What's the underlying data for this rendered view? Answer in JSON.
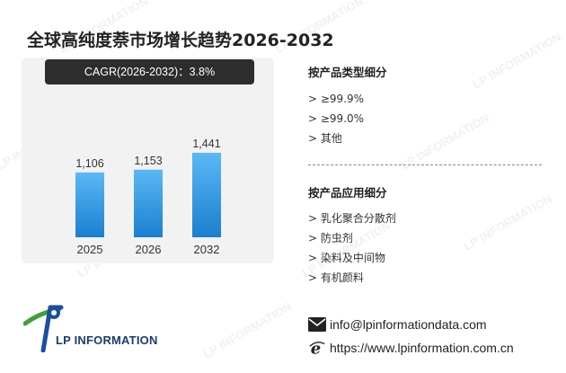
{
  "title": "全球高纯度萘市场增长趋势2026-2032",
  "cagr_label": "CAGR(2026-2032)：3.8%",
  "chart_data": {
    "type": "bar",
    "categories": [
      "2025",
      "2026",
      "2032"
    ],
    "values": [
      1106,
      1153,
      1441
    ],
    "value_labels": [
      "1,106",
      "1,153",
      "1,441"
    ],
    "title": "",
    "xlabel": "",
    "ylabel": "",
    "ylim": [
      0,
      1600
    ],
    "grid": false,
    "bar_color_top": "#5bb8f5",
    "bar_color_bottom": "#1a7fd0"
  },
  "segments": {
    "product_type": {
      "title": "按产品类型细分",
      "items": [
        "> ≥99.9%",
        "> ≥99.0%",
        "> 其他"
      ]
    },
    "application": {
      "title": "按产品应用细分",
      "items": [
        "> 乳化聚合分散剂",
        "> 防虫剂",
        "> 染料及中间物",
        "> 有机颜料"
      ]
    }
  },
  "contact": {
    "email": "info@lpinformationdata.com",
    "website": "https://www.lpinformation.com.cn"
  },
  "logo": {
    "text": "LP INFORMATION",
    "watermark_text": "LP INFORMATION",
    "colors": {
      "blue": "#1a4f9c",
      "green": "#3aa335"
    }
  },
  "icons": {
    "email": "envelope-icon",
    "website": "internet-explorer-icon"
  }
}
